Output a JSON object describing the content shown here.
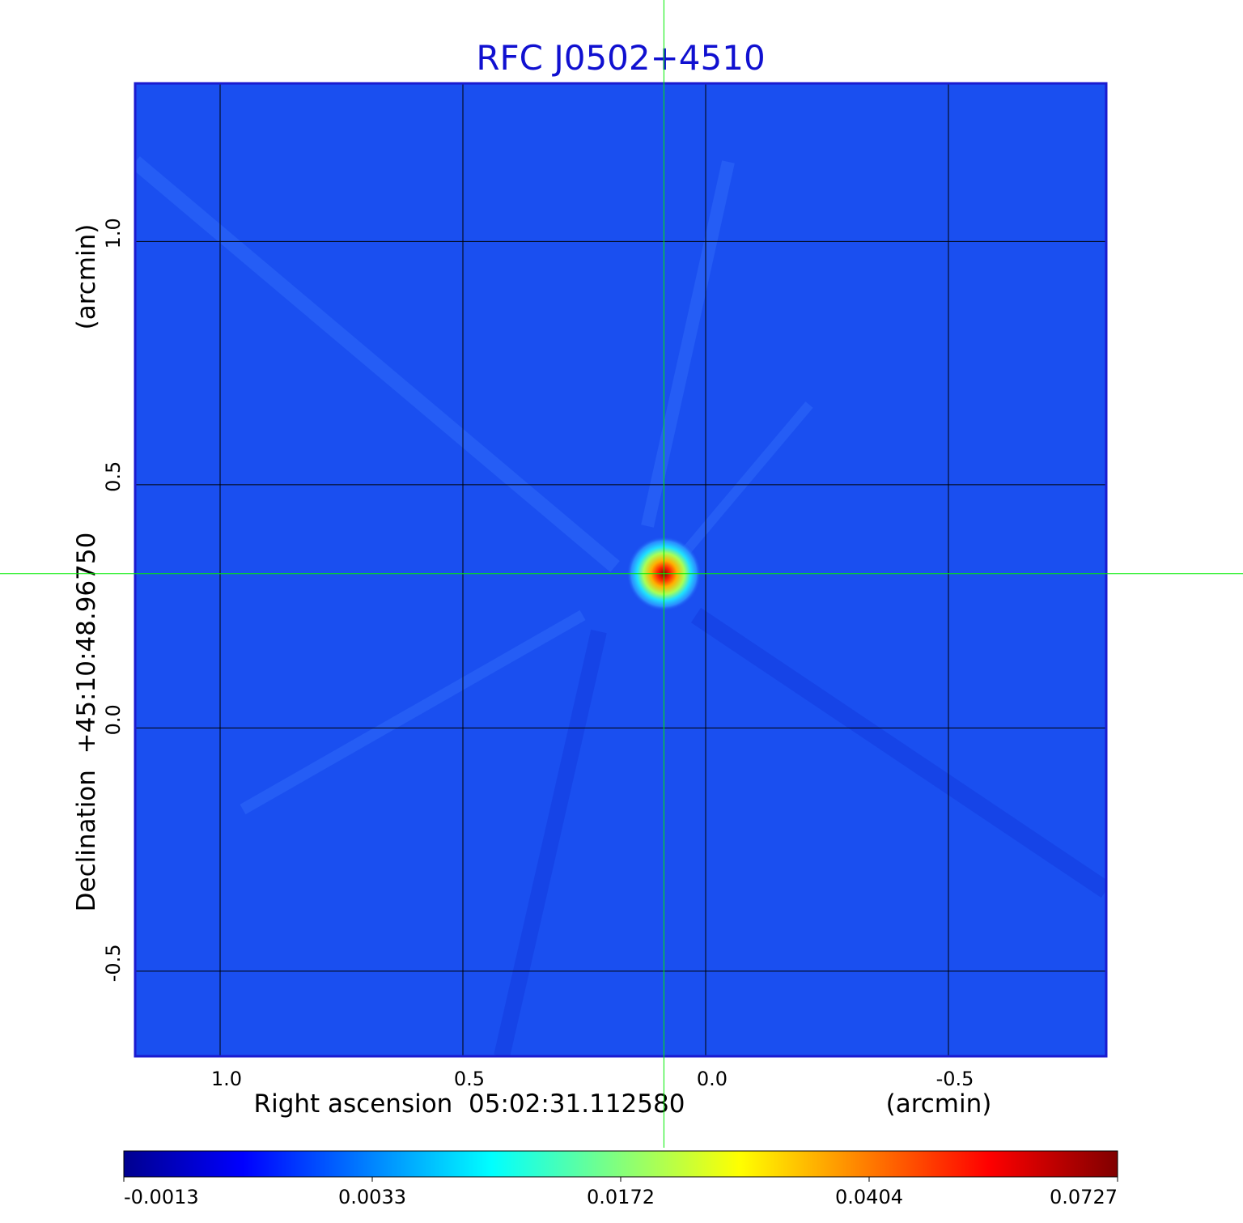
{
  "chart_data": {
    "type": "heatmap",
    "title": "RFC J0502+4510",
    "title_color": "#1010d0",
    "xlabel": "Right ascension  05:02:31.112580",
    "x_unit": "(arcmin)",
    "ylabel": "Declination  +45:10:48.96750",
    "y_unit": "(arcmin)",
    "xlim": [
      1.175,
      -0.825
    ],
    "ylim": [
      -0.675,
      1.325
    ],
    "x_ticks": [
      1.0,
      0.5,
      0.0,
      -0.5
    ],
    "x_tick_labels": [
      "1.0",
      "0.5",
      "0.0",
      "-0.5"
    ],
    "y_ticks": [
      1.0,
      0.5,
      0.0,
      -0.5
    ],
    "y_tick_labels": [
      "1.0",
      "0.5",
      "0.0",
      "-0.5"
    ],
    "grid": true,
    "crosshair": {
      "x": 0.086,
      "y": 0.317,
      "color": "#00ee00"
    },
    "background_level": 0.0015,
    "source": {
      "x": 0.086,
      "y": 0.317,
      "peak": 0.0727
    },
    "colorbar": {
      "scale": "nonlinear",
      "tick_labels": [
        "-0.0013",
        "0.0033",
        "0.0172",
        "0.0404",
        "0.0727"
      ],
      "tick_values": [
        -0.0013,
        0.0033,
        0.0172,
        0.0404,
        0.0727
      ],
      "colors": [
        "#00008f",
        "#0000ff",
        "#00ffff",
        "#ffff00",
        "#ff0000",
        "#800000"
      ]
    },
    "frame_color": "#1a1ad0",
    "background_color": "#1a4ff0"
  }
}
